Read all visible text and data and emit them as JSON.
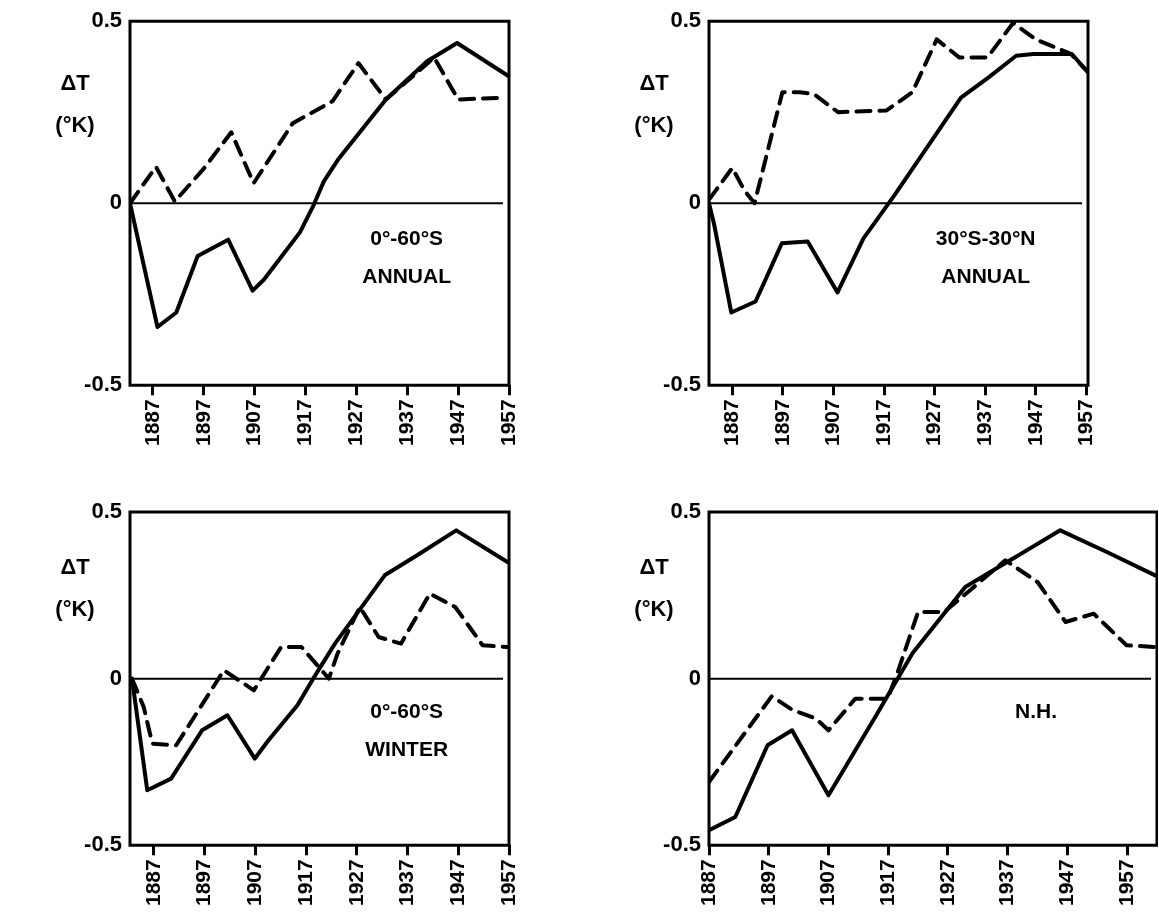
{
  "chart_data": [
    {
      "type": "line",
      "ylabel": "ΔT (°K)",
      "annotations": [
        "0°-60°S",
        "ANNUAL"
      ],
      "xlim": [
        1882.5,
        1957
      ],
      "xticks": [
        1887,
        1897,
        1907,
        1917,
        1927,
        1937,
        1947,
        1957
      ],
      "ylim": [
        -0.5,
        0.5
      ],
      "yticks": [
        -0.5,
        0,
        0.5
      ],
      "grid": false,
      "legend": false,
      "marker": "none",
      "ref_lines": [
        {
          "axis": "y",
          "value": 0
        }
      ],
      "series": [
        {
          "color": "#000000",
          "line_style": "solid",
          "x": [
            1882.5,
            1887.9,
            1891.6,
            1895.8,
            1901.8,
            1906.6,
            1908.8,
            1915.9,
            1918.6,
            1920.6,
            1923.4,
            1932.8,
            1940.9,
            1946.8,
            1956.8
          ],
          "values": [
            0,
            -0.34,
            -0.3,
            -0.145,
            -0.1,
            -0.24,
            -0.21,
            -0.08,
            -0.005,
            0.06,
            0.12,
            0.285,
            0.39,
            0.44,
            0.35
          ]
        },
        {
          "color": "#000000",
          "line_style": "dashed",
          "x": [
            1882.5,
            1887.6,
            1891.3,
            1897,
            1902.4,
            1906.8,
            1914.5,
            1922.3,
            1927.4,
            1932.8,
            1942.3,
            1947,
            1955.8
          ],
          "values": [
            0,
            0.1,
            0.005,
            0.095,
            0.195,
            0.055,
            0.22,
            0.28,
            0.385,
            0.285,
            0.4,
            0.285,
            0.29
          ]
        }
      ]
    },
    {
      "type": "line",
      "ylabel": "ΔT (°K)",
      "annotations": [
        "30°S-30°N",
        "ANNUAL"
      ],
      "xlim": [
        1882.4,
        1957.3
      ],
      "xticks": [
        1887,
        1897,
        1907,
        1917,
        1927,
        1937,
        1947,
        1957
      ],
      "ylim": [
        -0.5,
        0.5
      ],
      "yticks": [
        -0.5,
        0,
        0.5
      ],
      "grid": false,
      "legend": false,
      "marker": "none",
      "ref_lines": [
        {
          "axis": "y",
          "value": 0
        }
      ],
      "series": [
        {
          "color": "#000000",
          "line_style": "solid",
          "x": [
            1882.4,
            1883.4,
            1886.8,
            1891.6,
            1896.8,
            1901.9,
            1907.8,
            1912.9,
            1919.1,
            1932.2,
            1937.6,
            1943.1,
            1946.5,
            1954.1,
            1957.3
          ],
          "values": [
            0,
            -0.057,
            -0.3,
            -0.27,
            -0.11,
            -0.105,
            -0.245,
            -0.097,
            0.023,
            0.29,
            0.345,
            0.405,
            0.41,
            0.41,
            0.36
          ]
        },
        {
          "color": "#000000",
          "line_style": "dashed",
          "x": [
            1882.4,
            1887,
            1889.4,
            1891.4,
            1896.9,
            1900.4,
            1903.1,
            1907.9,
            1917.5,
            1922.6,
            1927.4,
            1931.9,
            1937.4,
            1942.5,
            1947,
            1953.9,
            1957.3
          ],
          "values": [
            0.01,
            0.097,
            0.035,
            0,
            0.305,
            0.305,
            0.3,
            0.25,
            0.255,
            0.305,
            0.45,
            0.4,
            0.4,
            0.495,
            0.45,
            0.41,
            0.36
          ]
        }
      ]
    },
    {
      "type": "line",
      "ylabel": "ΔT (°K)",
      "annotations": [
        "0°-60°S",
        "WINTER"
      ],
      "xlim": [
        1882.3,
        1957
      ],
      "xticks": [
        1887,
        1897,
        1907,
        1917,
        1927,
        1937,
        1947,
        1957
      ],
      "ylim": [
        -0.5,
        0.5
      ],
      "yticks": [
        -0.5,
        0,
        0.5
      ],
      "grid": false,
      "legend": false,
      "marker": "none",
      "ref_lines": [
        {
          "axis": "y",
          "value": 0
        }
      ],
      "series": [
        {
          "color": "#000000",
          "line_style": "solid",
          "x": [
            1882.7,
            1885.7,
            1890.4,
            1896.5,
            1901.5,
            1906.9,
            1909.6,
            1915.3,
            1918.4,
            1922.7,
            1932.5,
            1938.9,
            1946.6,
            1956.7
          ],
          "values": [
            0,
            -0.335,
            -0.3,
            -0.155,
            -0.11,
            -0.24,
            -0.185,
            -0.08,
            0,
            0.105,
            0.31,
            0.37,
            0.445,
            0.35
          ]
        },
        {
          "color": "#000000",
          "line_style": "dashed",
          "x": [
            1882.7,
            1885,
            1886.7,
            1891.4,
            1900.8,
            1906.7,
            1912.1,
            1916.1,
            1921.5,
            1923.2,
            1927.6,
            1931.3,
            1935.7,
            1941.4,
            1946.4,
            1951.8,
            1956.7
          ],
          "values": [
            0,
            -0.085,
            -0.195,
            -0.2,
            0.025,
            -0.035,
            0.095,
            0.095,
            0,
            0.075,
            0.215,
            0.125,
            0.105,
            0.255,
            0.215,
            0.1,
            0.095
          ]
        }
      ]
    },
    {
      "type": "line",
      "ylabel": "ΔT (°K)",
      "annotations": [
        "N.H."
      ],
      "xlim": [
        1887,
        1962
      ],
      "xticks": [
        1887,
        1897,
        1907,
        1917,
        1927,
        1937,
        1947,
        1957
      ],
      "ylim": [
        -0.5,
        0.5
      ],
      "yticks": [
        -0.5,
        0,
        0.5
      ],
      "grid": false,
      "legend": false,
      "marker": "none",
      "ref_lines": [
        {
          "axis": "y",
          "value": 0
        }
      ],
      "series": [
        {
          "color": "#000000",
          "line_style": "solid",
          "x": [
            1887,
            1891.4,
            1896.8,
            1900.9,
            1907,
            1915,
            1921.1,
            1929.9,
            1937.4,
            1945.8,
            1953.6,
            1961.7
          ],
          "values": [
            -0.455,
            -0.415,
            -0.2,
            -0.155,
            -0.35,
            -0.11,
            0.077,
            0.275,
            0.355,
            0.445,
            0.38,
            0.31
          ]
        },
        {
          "color": "#000000",
          "line_style": "dashed",
          "x": [
            1887,
            1897.5,
            1900.9,
            1904.9,
            1907,
            1911.5,
            1916.9,
            1918.6,
            1922,
            1926.4,
            1936.6,
            1942,
            1946.7,
            1951.4,
            1956.9,
            1961.7
          ],
          "values": [
            -0.31,
            -0.053,
            -0.093,
            -0.12,
            -0.155,
            -0.06,
            -0.06,
            0.02,
            0.2,
            0.2,
            0.355,
            0.29,
            0.17,
            0.195,
            0.1,
            0.095
          ]
        }
      ]
    }
  ]
}
